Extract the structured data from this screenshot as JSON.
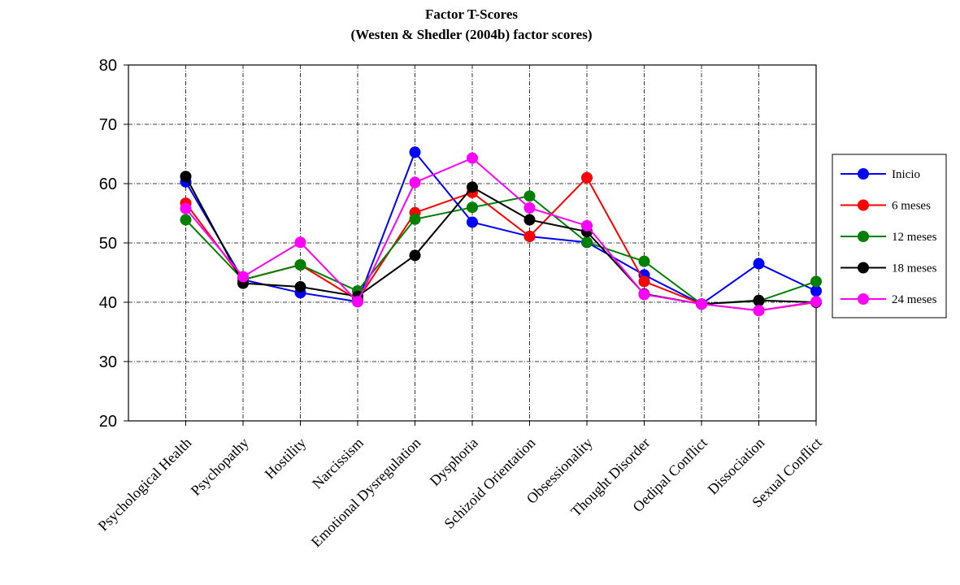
{
  "chart_data": {
    "type": "line",
    "title": "Factor T-Scores",
    "subtitle": "(Westen & Shedler (2004b) factor scores)",
    "xlabel": "",
    "ylabel": "",
    "ylim": [
      20,
      80
    ],
    "yticks": [
      20,
      30,
      40,
      50,
      60,
      70,
      80
    ],
    "grid": true,
    "legend_position": "right",
    "categories": [
      "Psychological Health",
      "Psychopathy",
      "Hostility",
      "Narcissism",
      "Emotional Dysregulation",
      "Dysphoria",
      "Schizoid Orientation",
      "Obsessionality",
      "Thought Disorder",
      "Oedipal Conflict",
      "Dissociation",
      "Sexual Conflict"
    ],
    "series": [
      {
        "name": "Inicio",
        "color": "#0000ff",
        "values": [
          60.3,
          43.8,
          41.6,
          40.1,
          65.3,
          53.5,
          51.1,
          50.1,
          44.6,
          39.7,
          46.5,
          41.9
        ]
      },
      {
        "name": "6 meses",
        "color": "#ff0000",
        "values": [
          56.7,
          43.8,
          46.3,
          40.4,
          55.1,
          58.5,
          51.1,
          61.0,
          43.5,
          39.7,
          38.6,
          40.0
        ]
      },
      {
        "name": "12 meses",
        "color": "#008000",
        "values": [
          53.9,
          43.8,
          46.3,
          41.9,
          54.0,
          56.0,
          57.9,
          50.1,
          46.9,
          39.7,
          40.2,
          43.5
        ]
      },
      {
        "name": "18 meses",
        "color": "#000000",
        "values": [
          61.2,
          43.2,
          42.6,
          41.0,
          47.9,
          59.4,
          53.9,
          51.9,
          41.4,
          39.7,
          40.3,
          40.0
        ]
      },
      {
        "name": "24 meses",
        "color": "#ff00ff",
        "values": [
          55.8,
          44.3,
          50.1,
          40.1,
          60.2,
          64.3,
          55.9,
          52.9,
          41.3,
          39.7,
          38.6,
          40.1
        ]
      }
    ]
  }
}
